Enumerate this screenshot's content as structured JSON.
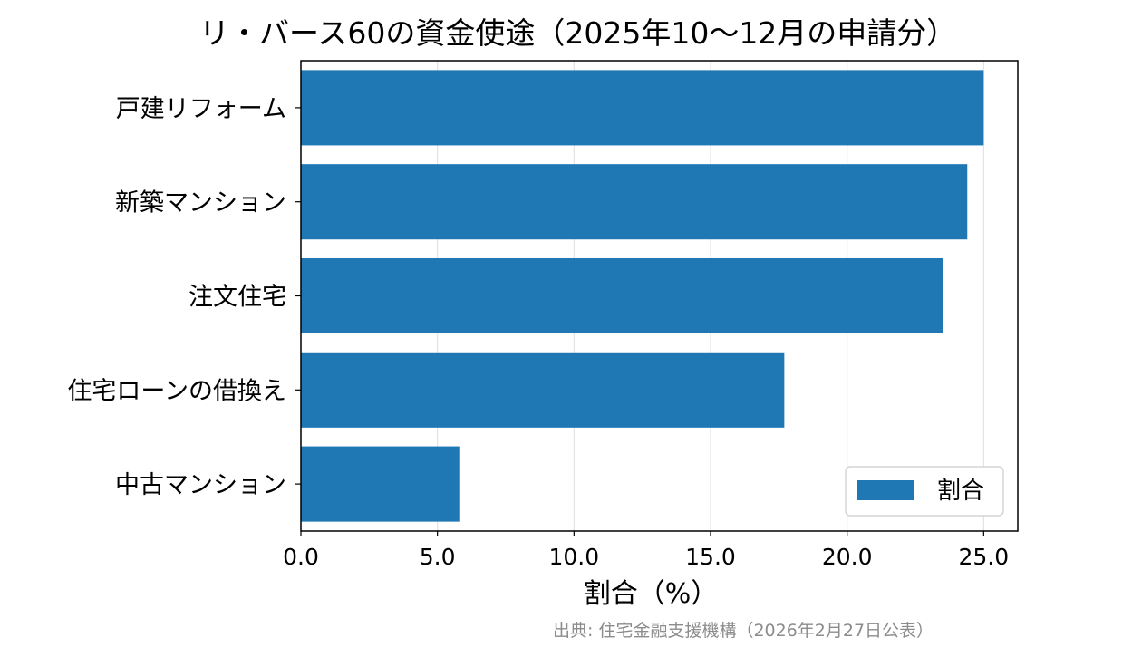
{
  "chart_data": {
    "type": "bar",
    "orientation": "horizontal",
    "title": "リ・バース60の資金使途（2025年10〜12月の申請分）",
    "xlabel": "割合（%）",
    "ylabel": "",
    "categories": [
      "戸建リフォーム",
      "新築マンション",
      "注文住宅",
      "住宅ローンの借換え",
      "中古マンション"
    ],
    "series": [
      {
        "name": "割合",
        "values": [
          25.0,
          24.4,
          23.5,
          17.7,
          5.8
        ],
        "color": "#1f77b4"
      }
    ],
    "xlim": [
      0,
      26.25
    ],
    "xticks": [
      "0.0",
      "5.0",
      "10.0",
      "15.0",
      "20.0",
      "25.0"
    ],
    "grid": "x",
    "legend": "bottom-right"
  },
  "source_note": "出典: 住宅金融支援機構（2026年2月27日公表）"
}
